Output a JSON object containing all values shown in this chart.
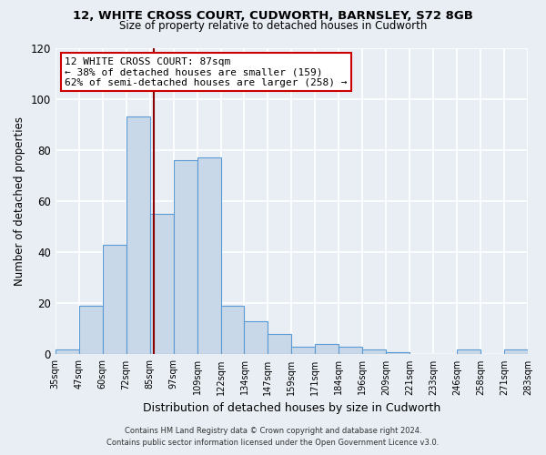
{
  "title1": "12, WHITE CROSS COURT, CUDWORTH, BARNSLEY, S72 8GB",
  "title2": "Size of property relative to detached houses in Cudworth",
  "xlabel": "Distribution of detached houses by size in Cudworth",
  "ylabel": "Number of detached properties",
  "bar_labels": [
    "35sqm",
    "47sqm",
    "60sqm",
    "72sqm",
    "85sqm",
    "97sqm",
    "109sqm",
    "122sqm",
    "134sqm",
    "147sqm",
    "159sqm",
    "171sqm",
    "184sqm",
    "196sqm",
    "209sqm",
    "221sqm",
    "233sqm",
    "246sqm",
    "258sqm",
    "271sqm",
    "283sqm"
  ],
  "bar_values": [
    2,
    19,
    43,
    93,
    55,
    76,
    77,
    19,
    13,
    8,
    3,
    4,
    3,
    2,
    1,
    0,
    0,
    2,
    0,
    2
  ],
  "bar_color": "#c8d8e8",
  "bar_edge_color": "#5b9bd5",
  "subject_line_color": "#8b0000",
  "annotation_title": "12 WHITE CROSS COURT: 87sqm",
  "annotation_line1": "← 38% of detached houses are smaller (159)",
  "annotation_line2": "62% of semi-detached houses are larger (258) →",
  "annotation_box_color": "#ffffff",
  "annotation_box_edge_color": "#cc0000",
  "ylim": [
    0,
    120
  ],
  "yticks": [
    0,
    20,
    40,
    60,
    80,
    100,
    120
  ],
  "footer1": "Contains HM Land Registry data © Crown copyright and database right 2024.",
  "footer2": "Contains public sector information licensed under the Open Government Licence v3.0.",
  "bg_color": "#e8eef4",
  "grid_color": "#ffffff"
}
